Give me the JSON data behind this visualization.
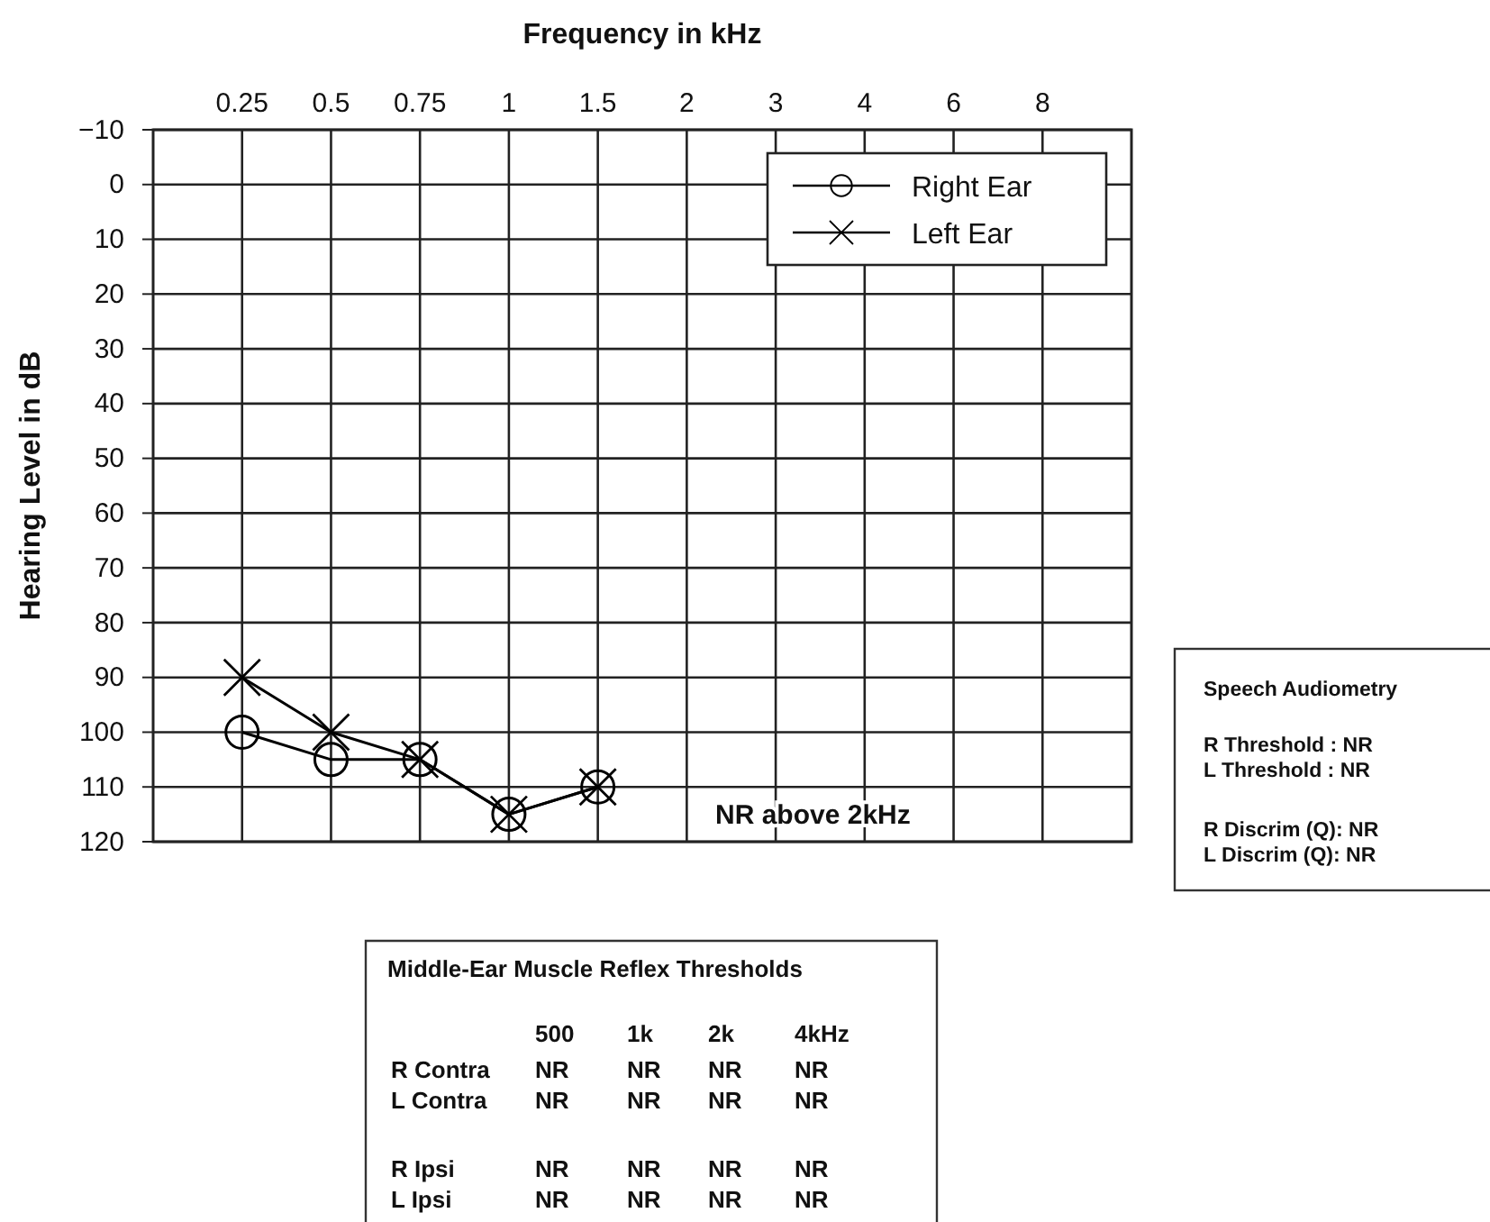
{
  "chart_data": {
    "type": "line",
    "xlabel": "Frequency in kHz",
    "ylabel": "Hearing Level in dB",
    "categories": [
      "0.25",
      "0.5",
      "0.75",
      "1",
      "1.5",
      "2",
      "3",
      "4",
      "6",
      "8"
    ],
    "ylim": [
      120,
      -10
    ],
    "yticks": [
      {
        "value": -10,
        "label": "−10"
      },
      0,
      10,
      20,
      30,
      40,
      50,
      60,
      70,
      80,
      90,
      100,
      110,
      120
    ],
    "grid": true,
    "legend": "top right",
    "series": [
      {
        "name": "Right Ear",
        "color": "#000000",
        "marker": "circle",
        "values": [
          100,
          105,
          105,
          115,
          110,
          null,
          null,
          null,
          null,
          null
        ]
      },
      {
        "name": "Left Ear",
        "color": "#000000",
        "marker": "cross",
        "values": [
          90,
          100,
          105,
          115,
          110,
          null,
          null,
          null,
          null,
          null
        ]
      }
    ],
    "annotations": [
      "NR above 2kHz",
      "Middle-Ear Muscle Reflex Thresholds",
      "500",
      "1k",
      "2k",
      "4kHz",
      "R Contra",
      "NR",
      "NR",
      "NR",
      "NR",
      "L Contra",
      "NR",
      "NR",
      "NR",
      "NR",
      "R Ipsi",
      "NR",
      "NR",
      "NR",
      "NR",
      "L Ipsi",
      "NR",
      "NR",
      "NR",
      "NR",
      "Speech Audiometry",
      "R Threshold : NR",
      "L Threshold : NR",
      "R Discrim (Q): NR",
      "L Discrim (Q): NR"
    ]
  }
}
